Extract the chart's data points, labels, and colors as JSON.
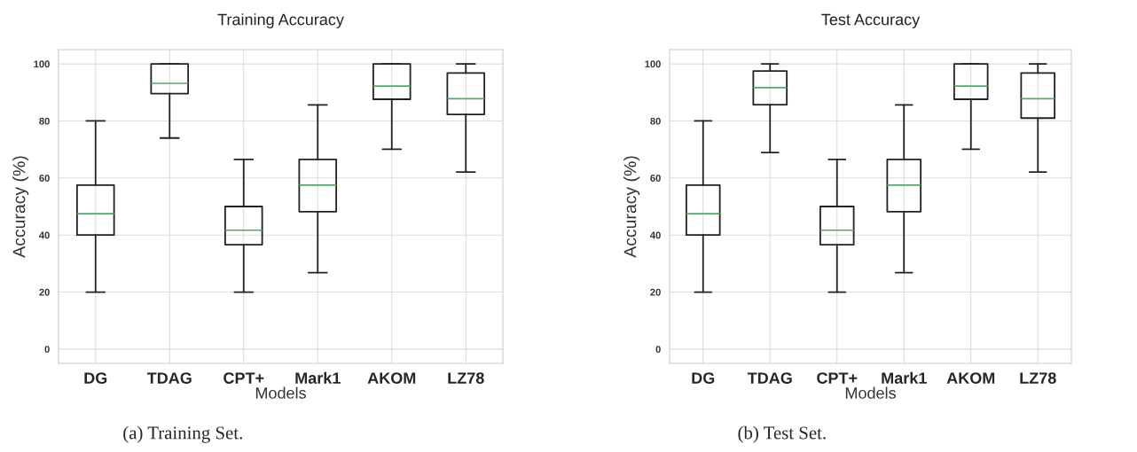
{
  "chart_data": [
    {
      "type": "box",
      "title": "Training Accuracy",
      "xlabel": "Models",
      "ylabel": "Accuracy (%)",
      "categories": [
        "DG",
        "TDAG",
        "CPT+",
        "Mark1",
        "AKOM",
        "LZ78"
      ],
      "boxes": [
        {
          "low": 20,
          "q1": 40,
          "median": 47.5,
          "q3": 57.5,
          "high": 80
        },
        {
          "low": 74,
          "q1": 89.6,
          "median": 93.2,
          "q3": 100,
          "high": 100
        },
        {
          "low": 20,
          "q1": 36.6,
          "median": 41.7,
          "q3": 50,
          "high": 66.5
        },
        {
          "low": 26.8,
          "q1": 48.2,
          "median": 57.5,
          "q3": 66.5,
          "high": 85.6
        },
        {
          "low": 70.1,
          "q1": 87.6,
          "median": 92.2,
          "q3": 100,
          "high": 100
        },
        {
          "low": 62.1,
          "q1": 82.3,
          "median": 87.8,
          "q3": 96.8,
          "high": 100
        }
      ],
      "color": "#222222",
      "ylim": [
        -5,
        105
      ],
      "yticks": [
        0,
        20,
        40,
        60,
        80,
        100
      ],
      "grid": true,
      "annotations": [
        "(a) Training Set."
      ]
    },
    {
      "type": "box",
      "title": "Test Accuracy",
      "xlabel": "Models",
      "ylabel": "Accuracy (%)",
      "categories": [
        "DG",
        "TDAG",
        "CPT+",
        "Mark1",
        "AKOM",
        "LZ78"
      ],
      "boxes": [
        {
          "low": 20,
          "q1": 40,
          "median": 47.5,
          "q3": 57.5,
          "high": 80
        },
        {
          "low": 68.9,
          "q1": 85.7,
          "median": 91.7,
          "q3": 97.5,
          "high": 100
        },
        {
          "low": 20,
          "q1": 36.6,
          "median": 41.7,
          "q3": 50,
          "high": 66.5
        },
        {
          "low": 26.8,
          "q1": 48.2,
          "median": 57.5,
          "q3": 66.5,
          "high": 85.6
        },
        {
          "low": 70.1,
          "q1": 87.6,
          "median": 92.2,
          "q3": 100,
          "high": 100
        },
        {
          "low": 62.1,
          "q1": 81,
          "median": 87.8,
          "q3": 96.8,
          "high": 100
        }
      ],
      "color": "#222222",
      "ylim": [
        -5,
        105
      ],
      "yticks": [
        0,
        20,
        40,
        60,
        80,
        100
      ],
      "grid": true,
      "annotations": [
        "(b) Test Set."
      ]
    }
  ]
}
